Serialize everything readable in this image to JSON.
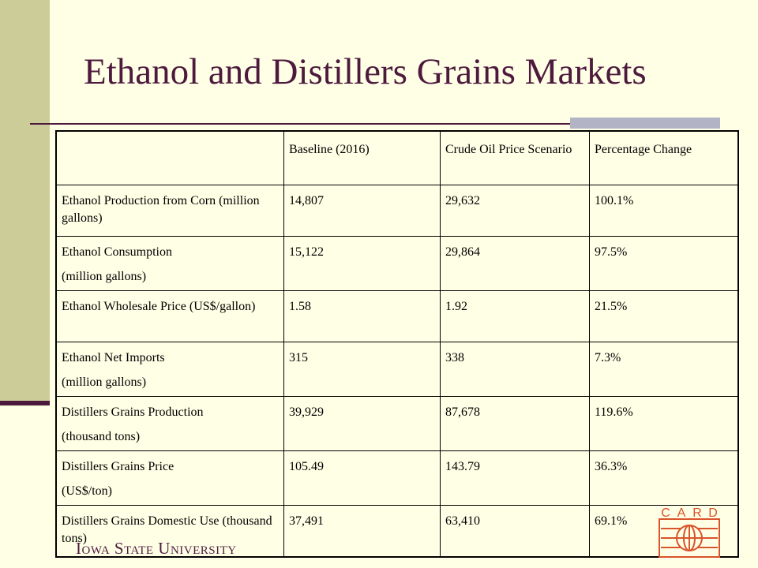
{
  "slide": {
    "title": "Ethanol and Distillers Grains Markets"
  },
  "table": {
    "headers": [
      "",
      "Baseline (2016)",
      "Crude Oil Price Scenario",
      "Percentage Change"
    ],
    "rows": [
      {
        "label_lines": [
          "Ethanol Production from Corn (million gallons)"
        ],
        "baseline": "14,807",
        "scenario": "29,632",
        "change": "100.1%"
      },
      {
        "label_lines": [
          "Ethanol Consumption",
          "(million gallons)"
        ],
        "baseline": "15,122",
        "scenario": "29,864",
        "change": "97.5%"
      },
      {
        "label_lines": [
          "Ethanol Wholesale Price (US$/gallon)"
        ],
        "baseline": "1.58",
        "scenario": "1.92",
        "change": "21.5%"
      },
      {
        "label_lines": [
          "Ethanol Net Imports",
          "(million gallons)"
        ],
        "baseline": "315",
        "scenario": "338",
        "change": "7.3%"
      },
      {
        "label_lines": [
          "Distillers Grains Production",
          "(thousand tons)"
        ],
        "baseline": "39,929",
        "scenario": "87,678",
        "change": "119.6%"
      },
      {
        "label_lines": [
          "Distillers Grains Price",
          "(US$/ton)"
        ],
        "baseline": "105.49",
        "scenario": "143.79",
        "change": "36.3%"
      },
      {
        "label_lines": [
          "Distillers Grains Domestic Use (thousand tons)"
        ],
        "baseline": "37,491",
        "scenario": "63,410",
        "change": "69.1%"
      }
    ]
  },
  "footer": {
    "university": "Iowa State University",
    "card_letters": [
      "C",
      "A",
      "R",
      "D"
    ]
  },
  "colors": {
    "background": "#ffffe6",
    "side_band": "#cccc99",
    "accent": "#4d1a3d",
    "card_red": "#d9532b"
  }
}
